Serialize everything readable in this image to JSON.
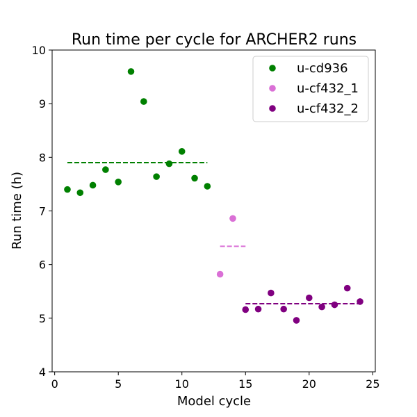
{
  "chart_data": {
    "type": "scatter",
    "title": "Run time per cycle for ARCHER2 runs",
    "xlabel": "Model cycle",
    "ylabel": "Run time (h)",
    "xlim": [
      -0.2,
      25.2
    ],
    "ylim": [
      4,
      10
    ],
    "xticks": [
      0,
      5,
      10,
      15,
      20,
      25
    ],
    "yticks": [
      4,
      5,
      6,
      7,
      8,
      9,
      10
    ],
    "grid": false,
    "legend_position": "top-right",
    "series": [
      {
        "name": "u-cd936",
        "color": "#008000",
        "points": [
          {
            "x": 1,
            "y": 7.4
          },
          {
            "x": 2,
            "y": 7.34
          },
          {
            "x": 3,
            "y": 7.48
          },
          {
            "x": 4,
            "y": 7.77
          },
          {
            "x": 5,
            "y": 7.54
          },
          {
            "x": 6,
            "y": 9.6
          },
          {
            "x": 7,
            "y": 9.04
          },
          {
            "x": 8,
            "y": 7.64
          },
          {
            "x": 9,
            "y": 7.88
          },
          {
            "x": 10,
            "y": 8.11
          },
          {
            "x": 11,
            "y": 7.61
          },
          {
            "x": 12,
            "y": 7.46
          }
        ],
        "mean_line": {
          "x_start": 1,
          "x_end": 12,
          "y": 7.9
        }
      },
      {
        "name": "u-cf432_1",
        "color": "#DA70D6",
        "points": [
          {
            "x": 13,
            "y": 5.82
          },
          {
            "x": 14,
            "y": 6.86
          }
        ],
        "mean_line": {
          "x_start": 13,
          "x_end": 15,
          "y": 6.34
        }
      },
      {
        "name": "u-cf432_2",
        "color": "#800080",
        "points": [
          {
            "x": 15,
            "y": 5.16
          },
          {
            "x": 16,
            "y": 5.17
          },
          {
            "x": 17,
            "y": 5.47
          },
          {
            "x": 18,
            "y": 5.17
          },
          {
            "x": 19,
            "y": 4.96
          },
          {
            "x": 20,
            "y": 5.38
          },
          {
            "x": 21,
            "y": 5.21
          },
          {
            "x": 22,
            "y": 5.25
          },
          {
            "x": 23,
            "y": 5.56
          },
          {
            "x": 24,
            "y": 5.31
          }
        ],
        "mean_line": {
          "x_start": 15,
          "x_end": 24,
          "y": 5.27
        }
      }
    ]
  }
}
